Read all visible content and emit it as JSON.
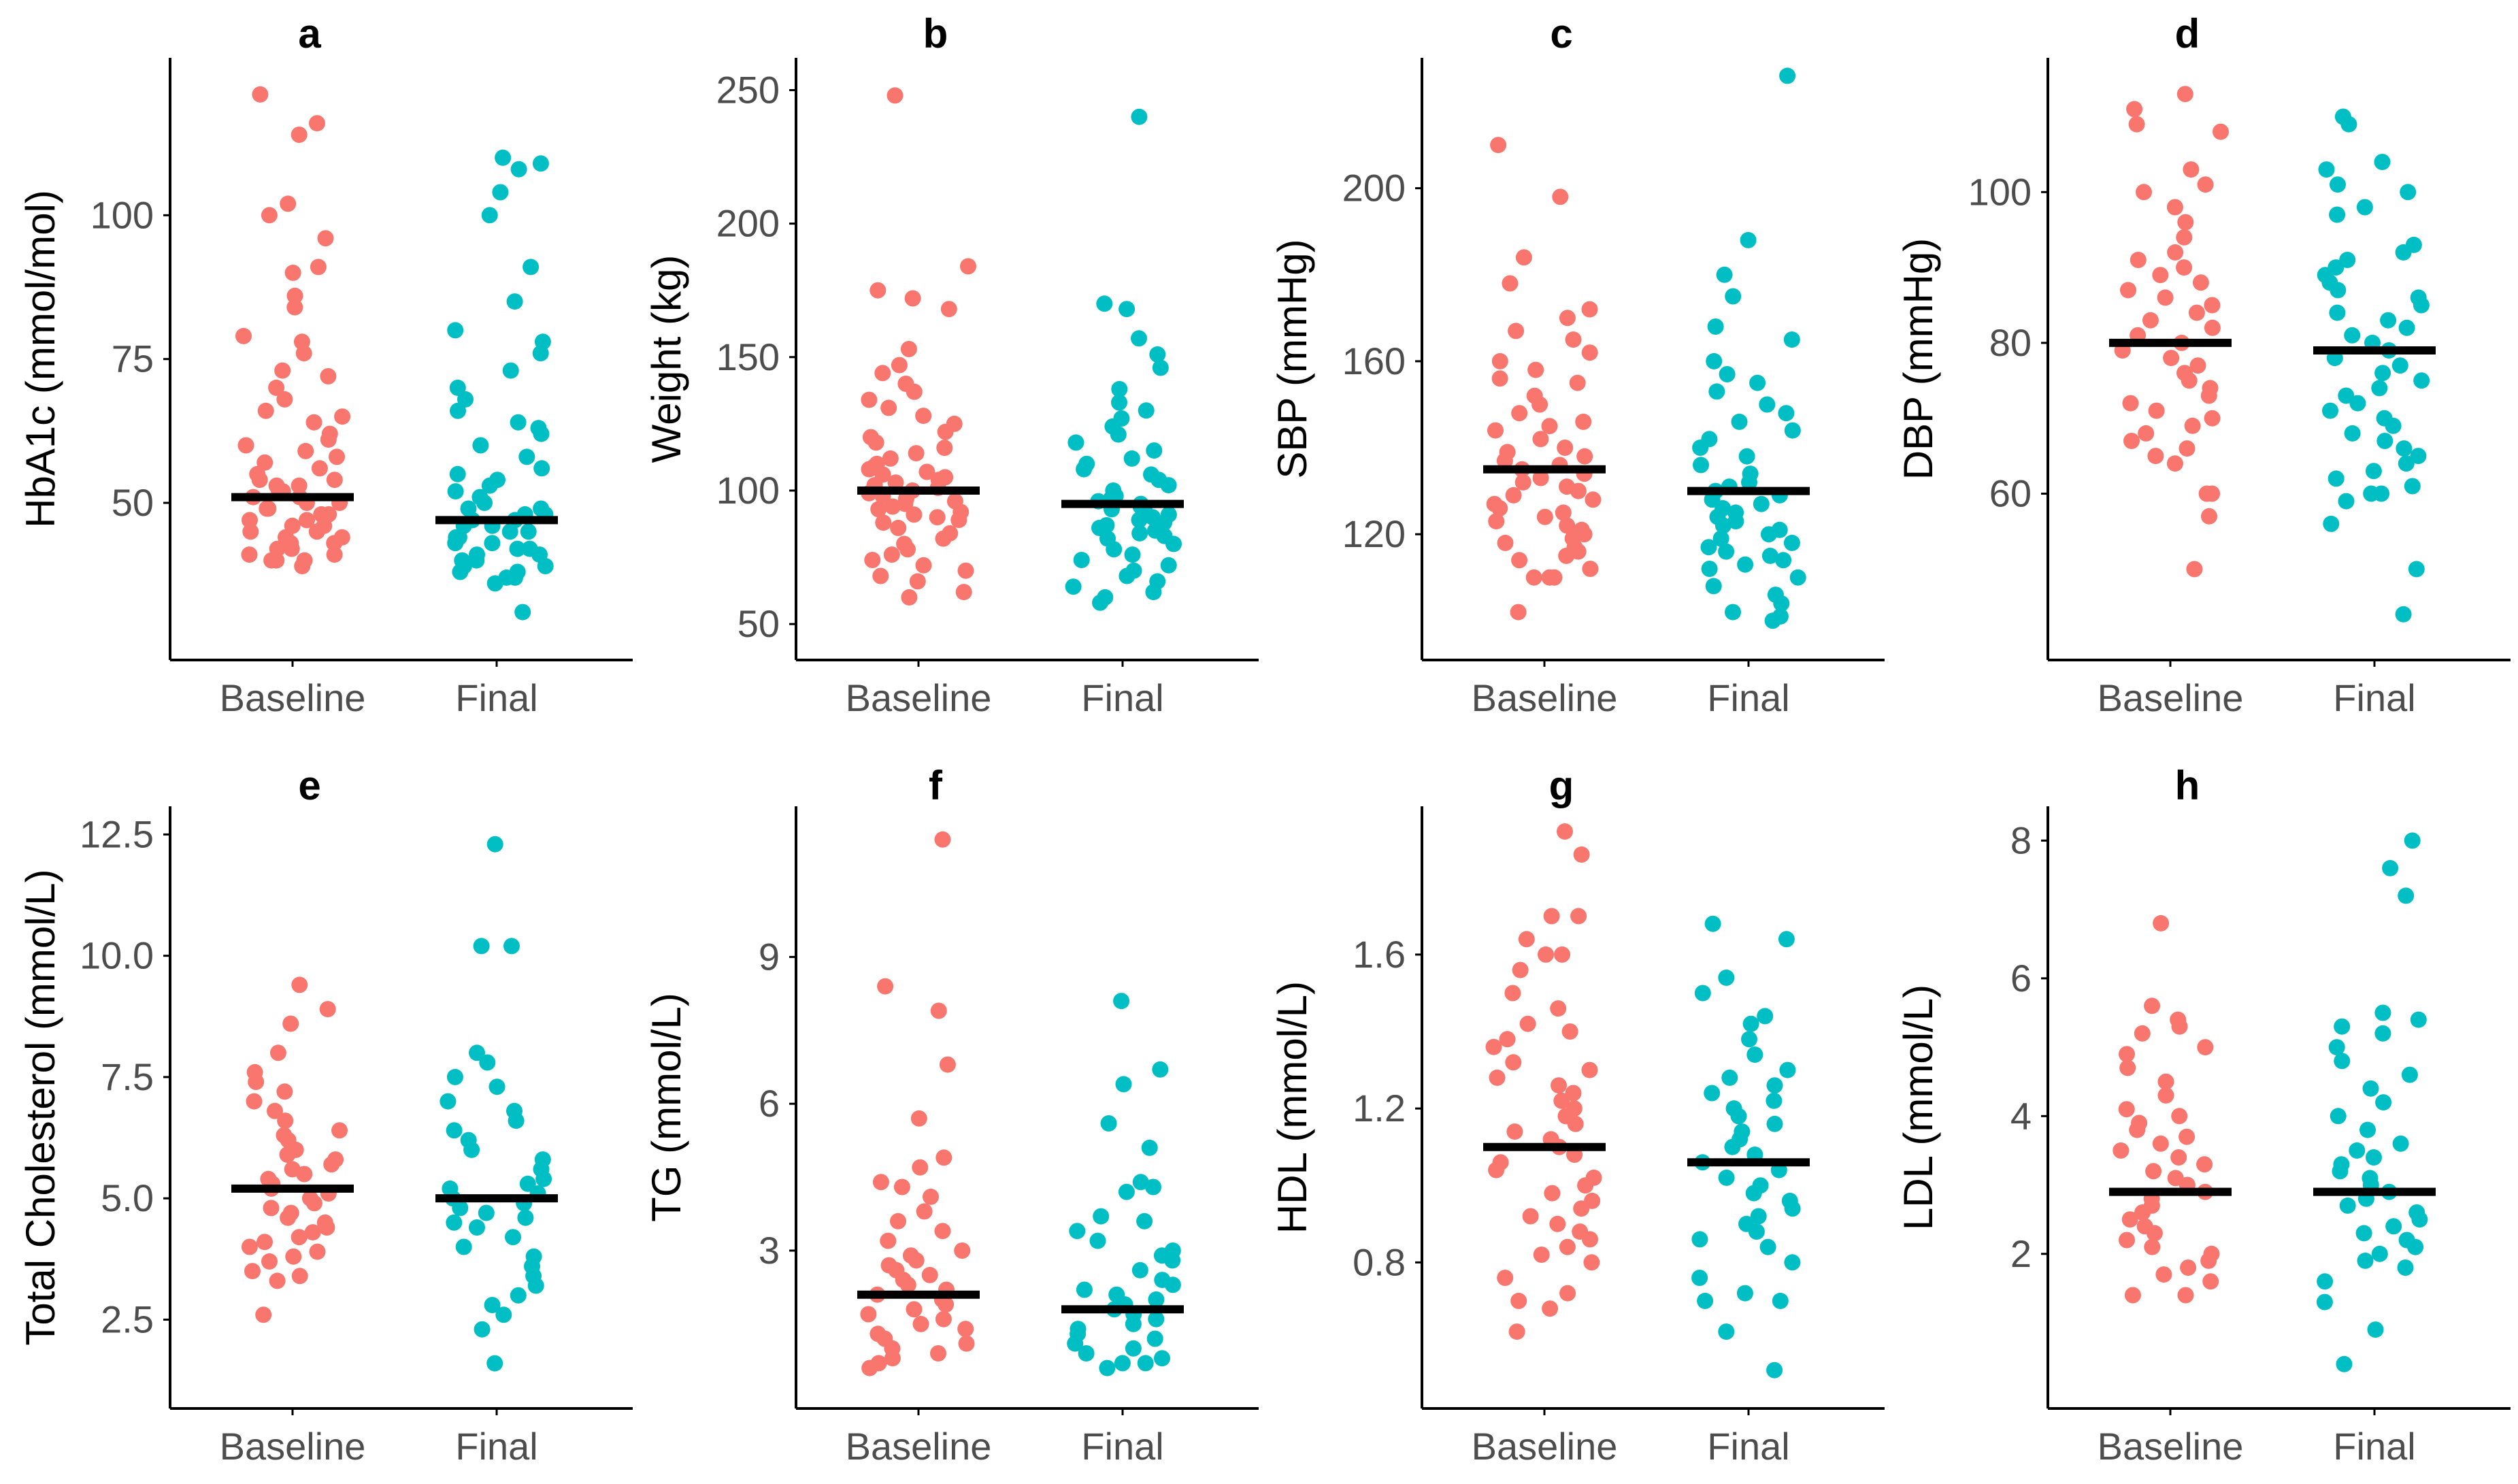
{
  "colors": {
    "baseline": "#f8766d",
    "final": "#00bfc4",
    "median": "#000000",
    "tick_text": "#4d4d4d",
    "axis": "#000000"
  },
  "chart_data": [
    {
      "type": "scatter",
      "title": "a",
      "ylabel": "HbA1c (mmol/mol)",
      "categories": [
        "Baseline",
        "Final"
      ],
      "yticks": [
        50,
        75,
        100
      ],
      "ylim": [
        28,
        125
      ],
      "medians": [
        51,
        47
      ],
      "series": [
        {
          "name": "Baseline",
          "values": [
            121,
            116,
            114,
            102,
            100,
            96,
            91,
            90,
            86,
            84,
            79,
            78,
            76,
            73,
            72,
            70,
            68,
            66,
            65,
            64,
            62,
            61,
            60,
            59,
            58,
            57,
            56,
            55,
            54,
            54,
            53,
            53,
            52,
            52,
            51,
            51,
            50,
            50,
            49,
            49,
            48,
            48,
            47,
            47,
            46,
            46,
            45,
            45,
            44,
            44,
            43,
            43,
            42,
            42,
            41,
            41,
            40,
            40,
            40,
            39
          ]
        },
        {
          "name": "Final",
          "values": [
            110,
            109,
            108,
            104,
            100,
            91,
            85,
            80,
            78,
            76,
            73,
            70,
            68,
            66,
            64,
            63,
            62,
            60,
            58,
            56,
            55,
            54,
            53,
            52,
            51,
            50,
            49,
            49,
            48,
            48,
            47,
            47,
            46,
            46,
            45,
            45,
            44,
            44,
            43,
            43,
            42,
            42,
            41,
            41,
            40,
            40,
            39,
            39,
            38,
            38,
            37,
            37,
            36,
            31
          ]
        }
      ]
    },
    {
      "type": "scatter",
      "title": "b",
      "ylabel": "Weight (kg)",
      "categories": [
        "Baseline",
        "Final"
      ],
      "yticks": [
        50,
        100,
        150,
        200,
        250
      ],
      "ylim": [
        48,
        257
      ],
      "medians": [
        100,
        95
      ],
      "series": [
        {
          "name": "Baseline",
          "values": [
            248,
            184,
            175,
            172,
            168,
            153,
            147,
            144,
            140,
            137,
            134,
            131,
            128,
            125,
            122,
            120,
            118,
            116,
            114,
            112,
            110,
            109,
            108,
            107,
            106,
            105,
            104,
            103,
            102,
            101,
            100,
            99,
            98,
            97,
            96,
            95,
            94,
            93,
            92,
            91,
            90,
            89,
            88,
            86,
            84,
            82,
            80,
            78,
            76,
            74,
            72,
            70,
            68,
            66,
            62,
            60
          ]
        },
        {
          "name": "Final",
          "values": [
            240,
            170,
            168,
            157,
            151,
            146,
            138,
            133,
            130,
            127,
            124,
            121,
            118,
            115,
            112,
            110,
            108,
            106,
            104,
            102,
            100,
            98,
            97,
            96,
            95,
            94,
            93,
            92,
            91,
            90,
            89,
            88,
            87,
            86,
            85,
            84,
            83,
            82,
            80,
            78,
            76,
            74,
            72,
            70,
            68,
            66,
            64,
            62,
            60,
            58
          ]
        }
      ]
    },
    {
      "type": "scatter",
      "title": "c",
      "ylabel": "SBP (mmHg)",
      "categories": [
        "Baseline",
        "Final"
      ],
      "yticks": [
        120,
        160,
        200
      ],
      "ylim": [
        98,
        227
      ],
      "medians": [
        135,
        130
      ],
      "series": [
        {
          "name": "Baseline",
          "values": [
            210,
            198,
            184,
            178,
            172,
            170,
            167,
            165,
            162,
            160,
            158,
            156,
            155,
            152,
            150,
            148,
            146,
            145,
            144,
            142,
            140,
            139,
            138,
            137,
            136,
            135,
            134,
            133,
            132,
            131,
            130,
            129,
            128,
            127,
            126,
            125,
            124,
            123,
            122,
            121,
            120,
            119,
            118,
            117,
            116,
            115,
            114,
            112,
            110,
            110,
            110,
            102
          ]
        },
        {
          "name": "Final",
          "values": [
            226,
            188,
            180,
            175,
            168,
            165,
            160,
            157,
            155,
            153,
            150,
            148,
            146,
            144,
            142,
            140,
            138,
            136,
            134,
            132,
            131,
            130,
            129,
            128,
            127,
            126,
            125,
            124,
            123,
            122,
            121,
            120,
            119,
            118,
            117,
            116,
            115,
            114,
            113,
            112,
            110,
            108,
            106,
            104,
            102,
            101,
            100
          ]
        }
      ]
    },
    {
      "type": "scatter",
      "title": "d",
      "ylabel": "DBP (mmHg)",
      "categories": [
        "Baseline",
        "Final"
      ],
      "yticks": [
        60,
        80,
        100
      ],
      "ylim": [
        42,
        116
      ],
      "medians": [
        80,
        79
      ],
      "series": [
        {
          "name": "Baseline",
          "values": [
            113,
            111,
            109,
            108,
            103,
            101,
            100,
            98,
            96,
            94,
            92,
            91,
            90,
            89,
            88,
            87,
            86,
            85,
            84,
            83,
            82,
            81,
            80,
            79,
            78,
            77,
            76,
            75,
            74,
            73,
            72,
            71,
            70,
            69,
            68,
            67,
            66,
            65,
            64,
            60,
            60,
            57,
            50
          ]
        },
        {
          "name": "Final",
          "values": [
            110,
            109,
            104,
            103,
            101,
            100,
            98,
            97,
            93,
            92,
            91,
            90,
            89,
            88,
            87,
            86,
            85,
            84,
            83,
            82,
            81,
            80,
            79,
            78,
            77,
            76,
            75,
            74,
            73,
            72,
            71,
            70,
            69,
            68,
            67,
            66,
            65,
            64,
            63,
            62,
            61,
            60,
            60,
            59,
            56,
            50,
            44
          ]
        }
      ]
    },
    {
      "type": "scatter",
      "title": "e",
      "ylabel": "Total Cholesterol (mmol/L)",
      "categories": [
        "Baseline",
        "Final"
      ],
      "yticks": [
        2.5,
        5.0,
        7.5,
        10.0,
        12.5
      ],
      "ylim": [
        1.3,
        12.8
      ],
      "medians": [
        5.2,
        5.0
      ],
      "series": [
        {
          "name": "Baseline",
          "values": [
            9.4,
            8.9,
            8.6,
            8.0,
            7.6,
            7.4,
            7.2,
            7.0,
            6.8,
            6.6,
            6.4,
            6.3,
            6.2,
            6.0,
            5.9,
            5.8,
            5.7,
            5.6,
            5.5,
            5.4,
            5.3,
            5.2,
            5.1,
            5.0,
            4.9,
            4.8,
            4.7,
            4.6,
            4.5,
            4.4,
            4.3,
            4.2,
            4.1,
            4.0,
            3.9,
            3.8,
            3.7,
            3.5,
            3.4,
            3.3,
            2.6
          ]
        },
        {
          "name": "Final",
          "values": [
            12.3,
            10.2,
            10.2,
            8.0,
            7.8,
            7.5,
            7.3,
            7.0,
            6.8,
            6.6,
            6.4,
            6.2,
            6.0,
            5.8,
            5.6,
            5.4,
            5.3,
            5.2,
            5.1,
            5.0,
            4.9,
            4.8,
            4.7,
            4.6,
            4.5,
            4.4,
            4.2,
            4.0,
            3.8,
            3.6,
            3.4,
            3.2,
            3.0,
            2.8,
            2.6,
            2.3,
            1.6
          ]
        }
      ]
    },
    {
      "type": "scatter",
      "title": "f",
      "ylabel": "TG (mmol/L)",
      "categories": [
        "Baseline",
        "Final"
      ],
      "yticks": [
        3,
        6,
        9
      ],
      "ylim": [
        0.4,
        11.8
      ],
      "medians": [
        2.1,
        1.8
      ],
      "series": [
        {
          "name": "Baseline",
          "values": [
            11.4,
            8.4,
            7.9,
            6.8,
            5.7,
            4.9,
            4.7,
            4.4,
            4.3,
            4.1,
            3.8,
            3.6,
            3.4,
            3.2,
            3.0,
            2.9,
            2.8,
            2.7,
            2.6,
            2.5,
            2.4,
            2.3,
            2.2,
            2.1,
            2.0,
            1.9,
            1.8,
            1.7,
            1.6,
            1.5,
            1.4,
            1.3,
            1.2,
            1.1,
            1.0,
            0.9,
            0.8,
            0.7,
            0.6
          ]
        },
        {
          "name": "Final",
          "values": [
            8.1,
            6.7,
            6.4,
            5.6,
            5.1,
            4.4,
            4.3,
            4.2,
            3.7,
            3.6,
            3.4,
            3.2,
            3.0,
            2.9,
            2.8,
            2.6,
            2.4,
            2.3,
            2.2,
            2.1,
            2.0,
            1.9,
            1.8,
            1.7,
            1.6,
            1.5,
            1.4,
            1.3,
            1.2,
            1.1,
            1.0,
            0.9,
            0.8,
            0.7,
            0.7,
            0.6
          ]
        }
      ]
    },
    {
      "type": "scatter",
      "title": "g",
      "ylabel": "HDL (mmol/L)",
      "categories": [
        "Baseline",
        "Final"
      ],
      "yticks": [
        0.8,
        1.2,
        1.6
      ],
      "ylim": [
        0.5,
        1.95
      ],
      "medians": [
        1.1,
        1.06
      ],
      "series": [
        {
          "name": "Baseline",
          "values": [
            1.92,
            1.86,
            1.7,
            1.7,
            1.64,
            1.6,
            1.6,
            1.56,
            1.5,
            1.46,
            1.42,
            1.4,
            1.38,
            1.36,
            1.32,
            1.3,
            1.28,
            1.26,
            1.24,
            1.22,
            1.2,
            1.18,
            1.16,
            1.14,
            1.12,
            1.1,
            1.08,
            1.06,
            1.04,
            1.02,
            1.0,
            0.98,
            0.96,
            0.94,
            0.92,
            0.9,
            0.88,
            0.86,
            0.84,
            0.82,
            0.8,
            0.76,
            0.72,
            0.7,
            0.68,
            0.62
          ]
        },
        {
          "name": "Final",
          "values": [
            1.68,
            1.64,
            1.54,
            1.5,
            1.44,
            1.42,
            1.38,
            1.34,
            1.3,
            1.28,
            1.26,
            1.24,
            1.22,
            1.2,
            1.18,
            1.16,
            1.14,
            1.12,
            1.1,
            1.08,
            1.06,
            1.04,
            1.02,
            1.0,
            0.98,
            0.96,
            0.94,
            0.92,
            0.9,
            0.88,
            0.86,
            0.84,
            0.8,
            0.76,
            0.72,
            0.7,
            0.7,
            0.62,
            0.52
          ]
        }
      ]
    },
    {
      "type": "scatter",
      "title": "h",
      "ylabel": "LDL (mmol/L)",
      "categories": [
        "Baseline",
        "Final"
      ],
      "yticks": [
        2,
        4,
        6,
        8
      ],
      "ylim": [
        0.2,
        8.3
      ],
      "medians": [
        2.9,
        2.9
      ],
      "series": [
        {
          "name": "Baseline",
          "values": [
            6.8,
            5.6,
            5.4,
            5.3,
            5.2,
            5.0,
            4.9,
            4.7,
            4.5,
            4.3,
            4.1,
            4.0,
            3.9,
            3.8,
            3.7,
            3.6,
            3.5,
            3.4,
            3.3,
            3.2,
            3.1,
            3.0,
            2.9,
            2.8,
            2.7,
            2.6,
            2.5,
            2.4,
            2.3,
            2.2,
            2.1,
            2.0,
            1.9,
            1.8,
            1.7,
            1.6,
            1.4,
            1.4
          ]
        },
        {
          "name": "Final",
          "values": [
            8.0,
            7.6,
            7.2,
            5.5,
            5.4,
            5.3,
            5.2,
            5.0,
            4.8,
            4.6,
            4.4,
            4.2,
            4.0,
            3.8,
            3.6,
            3.5,
            3.4,
            3.3,
            3.2,
            3.1,
            3.0,
            2.9,
            2.8,
            2.7,
            2.6,
            2.5,
            2.4,
            2.3,
            2.2,
            2.1,
            2.0,
            1.9,
            1.8,
            1.6,
            1.3,
            0.9,
            0.4
          ]
        }
      ]
    }
  ]
}
